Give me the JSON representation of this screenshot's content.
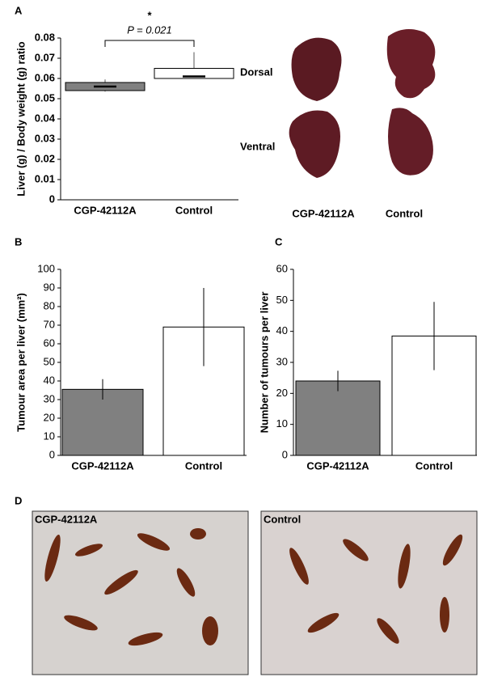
{
  "panel_labels": [
    "A",
    "B",
    "C",
    "D"
  ],
  "photo_labels": {
    "dorsal": "Dorsal",
    "ventral": "Ventral",
    "left": "CGP-42112A",
    "right": "Control"
  },
  "section_labels": {
    "left": "CGP-42112A",
    "right": "Control"
  },
  "chart_data": [
    {
      "type": "box",
      "y_label": "Liver (g) / Body weight (g) ratio",
      "categories": [
        "CGP-42112A",
        "Control"
      ],
      "boxes": [
        {
          "min": 0.0535,
          "q1": 0.054,
          "median": 0.056,
          "q3": 0.058,
          "max": 0.0595
        },
        {
          "min": 0.06,
          "q1": 0.06,
          "median": 0.061,
          "q3": 0.065,
          "max": 0.073
        }
      ],
      "colors": [
        "#808080",
        "#ffffff"
      ],
      "annotations": [
        "*",
        "P = 0.021"
      ],
      "ylim": [
        0,
        0.08
      ],
      "yticks": [
        0,
        0.01,
        0.02,
        0.03,
        0.04,
        0.05,
        0.06,
        0.07,
        0.08
      ]
    },
    {
      "type": "bar",
      "y_label": "Tumour area per liver (mm²)",
      "categories": [
        "CGP-42112A",
        "Control"
      ],
      "values": [
        35.5,
        69
      ],
      "errors": [
        5.5,
        21
      ],
      "colors": [
        "#808080",
        "#ffffff"
      ],
      "ylim": [
        0,
        100
      ],
      "yticks": [
        0,
        10,
        20,
        30,
        40,
        50,
        60,
        70,
        80,
        90,
        100
      ]
    },
    {
      "type": "bar",
      "y_label": "Number of tumours per liver",
      "categories": [
        "CGP-42112A",
        "Control"
      ],
      "values": [
        24,
        38.5
      ],
      "errors": [
        3.3,
        11
      ],
      "colors": [
        "#808080",
        "#ffffff"
      ],
      "ylim": [
        0,
        60
      ],
      "yticks": [
        0,
        10,
        20,
        30,
        40,
        50,
        60
      ]
    }
  ]
}
